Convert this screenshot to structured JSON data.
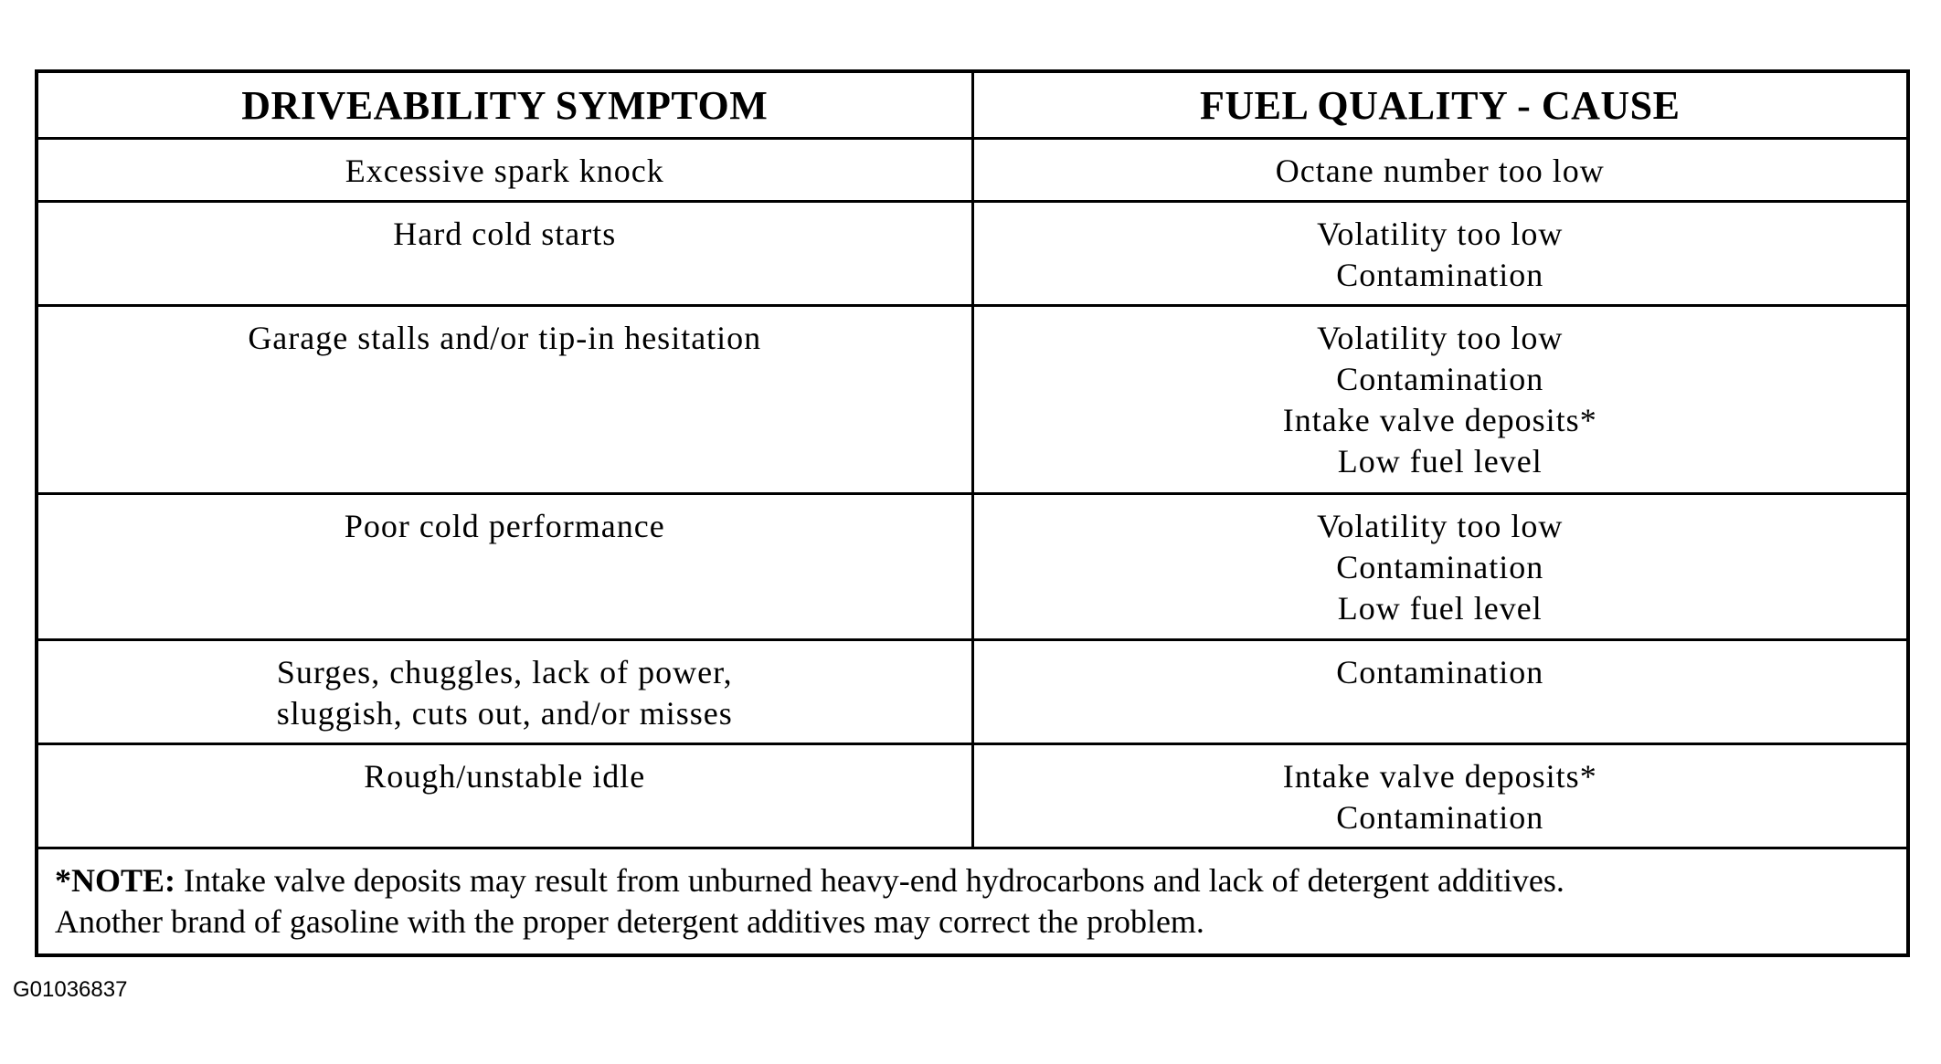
{
  "table": {
    "headers": {
      "symptom": "DRIVEABILITY SYMPTOM",
      "cause": "FUEL QUALITY - CAUSE"
    },
    "rows": [
      {
        "symptom": [
          "Excessive spark knock"
        ],
        "causes": [
          "Octane number too low"
        ]
      },
      {
        "symptom": [
          "Hard cold starts"
        ],
        "causes": [
          "Volatility too low",
          "Contamination"
        ]
      },
      {
        "symptom": [
          "Garage stalls and/or tip-in hesitation"
        ],
        "causes": [
          "Volatility too low",
          "Contamination",
          "Intake valve deposits*",
          "Low fuel level"
        ]
      },
      {
        "symptom": [
          "Poor cold performance"
        ],
        "causes": [
          "Volatility too low",
          "Contamination",
          "Low fuel level"
        ]
      },
      {
        "symptom": [
          "Surges, chuggles, lack of power,",
          "sluggish, cuts out, and/or misses"
        ],
        "causes": [
          "Contamination"
        ]
      },
      {
        "symptom": [
          "Rough/unstable idle"
        ],
        "causes": [
          "Intake valve deposits*",
          "Contamination"
        ]
      }
    ],
    "note": {
      "label": "*NOTE:",
      "line1": " Intake valve deposits may result from unburned heavy-end hydrocarbons and lack of detergent additives.",
      "line2": "Another brand of gasoline with the proper detergent additives may correct the problem."
    }
  },
  "figure_id": "G01036837"
}
